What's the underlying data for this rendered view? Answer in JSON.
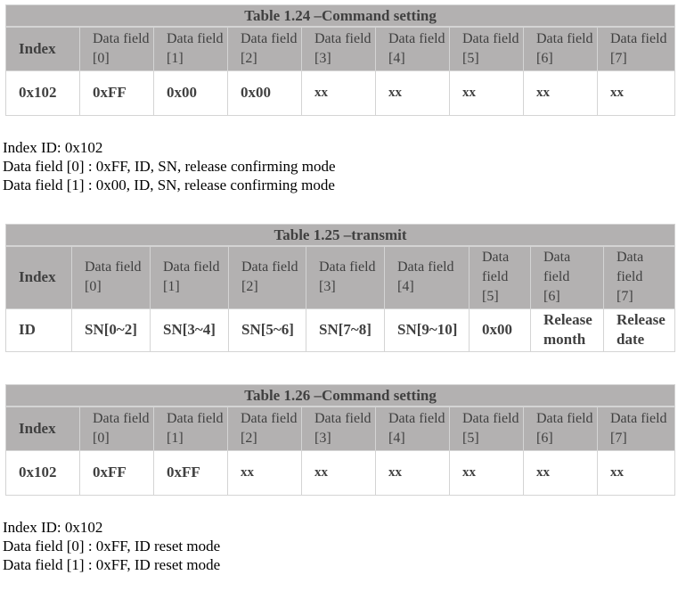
{
  "tables": [
    {
      "title": "Table 1.24 –Command setting",
      "headers": [
        "Index",
        "Data field [0]",
        "Data field [1]",
        "Data field [2]",
        "Data field [3]",
        "Data field [4]",
        "Data field [5]",
        "Data field [6]",
        "Data field [7]"
      ],
      "rows": [
        [
          "0x102",
          "0xFF",
          "0x00",
          "0x00",
          "xx",
          "xx",
          "xx",
          "xx",
          "xx"
        ]
      ]
    },
    {
      "title": "Table 1.25 –transmit",
      "headers": [
        "Index",
        "Data field [0]",
        "Data field [1]",
        "Data field [2]",
        "Data field [3]",
        "Data field [4]",
        "Data field [5]",
        "Data field [6]",
        "Data field [7]"
      ],
      "rows": [
        [
          "ID",
          "SN[0~2]",
          "SN[3~4]",
          "SN[5~6]",
          "SN[7~8]",
          "SN[9~10]",
          "0x00",
          "Release month",
          "Release date"
        ]
      ]
    },
    {
      "title": "Table 1.26 –Command setting",
      "headers": [
        "Index",
        "Data field [0]",
        "Data field [1]",
        "Data field [2]",
        "Data field [3]",
        "Data field [4]",
        "Data field [5]",
        "Data field [6]",
        "Data field [7]"
      ],
      "rows": [
        [
          "0x102",
          "0xFF",
          "0xFF",
          "xx",
          "xx",
          "xx",
          "xx",
          "xx",
          "xx"
        ]
      ]
    }
  ],
  "notes": [
    [
      "Index ID: 0x102",
      "Data field [0] : 0xFF,  ID, SN, release confirming mode",
      "Data field [1] : 0x00,  ID, SN, release confirming mode"
    ],
    [
      "Index ID: 0x102",
      "Data field [0] : 0xFF,  ID reset mode",
      "Data field [1] : 0xFF,  ID reset mode"
    ]
  ]
}
